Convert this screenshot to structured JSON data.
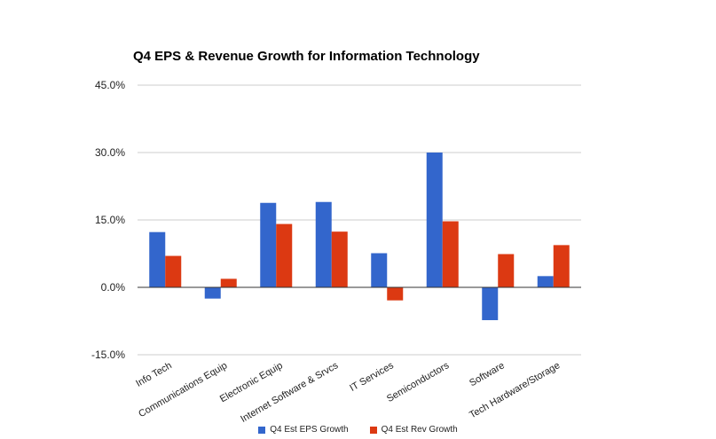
{
  "chart_data": {
    "type": "bar",
    "title": "Q4 EPS & Revenue Growth for Information Technology",
    "xlabel": "",
    "ylabel": "",
    "ylim": [
      -15,
      45
    ],
    "yticks": [
      -15,
      0,
      15,
      30,
      45
    ],
    "ytick_labels": [
      "-15.0%",
      "0.0%",
      "15.0%",
      "30.0%",
      "45.0%"
    ],
    "categories": [
      "Info Tech",
      "Communications Equip",
      "Electronic Equip",
      "Internet Software & Srvcs",
      "IT Services",
      "Semiconductors",
      "Software",
      "Tech Hardware/Storage"
    ],
    "series": [
      {
        "name": "Q4 Est EPS Growth",
        "color": "#3366cc",
        "values": [
          12.3,
          -2.5,
          18.8,
          19.0,
          7.6,
          30.0,
          -7.3,
          2.5
        ]
      },
      {
        "name": "Q4 Est Rev Growth",
        "color": "#dc3912",
        "values": [
          7.0,
          1.9,
          14.1,
          12.4,
          -2.9,
          14.7,
          7.4,
          9.4
        ]
      }
    ],
    "grid": true,
    "legend_position": "bottom"
  }
}
